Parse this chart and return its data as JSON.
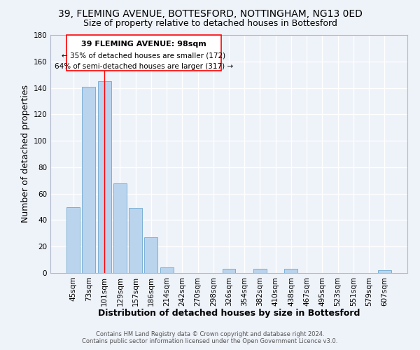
{
  "title": "39, FLEMING AVENUE, BOTTESFORD, NOTTINGHAM, NG13 0ED",
  "subtitle": "Size of property relative to detached houses in Bottesford",
  "xlabel": "Distribution of detached houses by size in Bottesford",
  "ylabel": "Number of detached properties",
  "bar_labels": [
    "45sqm",
    "73sqm",
    "101sqm",
    "129sqm",
    "157sqm",
    "186sqm",
    "214sqm",
    "242sqm",
    "270sqm",
    "298sqm",
    "326sqm",
    "354sqm",
    "382sqm",
    "410sqm",
    "438sqm",
    "467sqm",
    "495sqm",
    "523sqm",
    "551sqm",
    "579sqm",
    "607sqm"
  ],
  "bar_values": [
    50,
    141,
    145,
    68,
    49,
    27,
    4,
    0,
    0,
    0,
    3,
    0,
    3,
    0,
    3,
    0,
    0,
    0,
    0,
    0,
    2
  ],
  "bar_color": "#bad4ee",
  "bar_edge_color": "#7aafd4",
  "ylim": [
    0,
    180
  ],
  "yticks": [
    0,
    20,
    40,
    60,
    80,
    100,
    120,
    140,
    160,
    180
  ],
  "annotation_text_line1": "39 FLEMING AVENUE: 98sqm",
  "annotation_text_line2": "← 35% of detached houses are smaller (172)",
  "annotation_text_line3": "64% of semi-detached houses are larger (317) →",
  "vline_x": 2,
  "footer_line1": "Contains HM Land Registry data © Crown copyright and database right 2024.",
  "footer_line2": "Contains public sector information licensed under the Open Government Licence v3.0.",
  "background_color": "#eef2f9",
  "grid_color": "#ffffff",
  "title_fontsize": 10,
  "subtitle_fontsize": 9,
  "axis_label_fontsize": 9,
  "tick_fontsize": 7.5
}
